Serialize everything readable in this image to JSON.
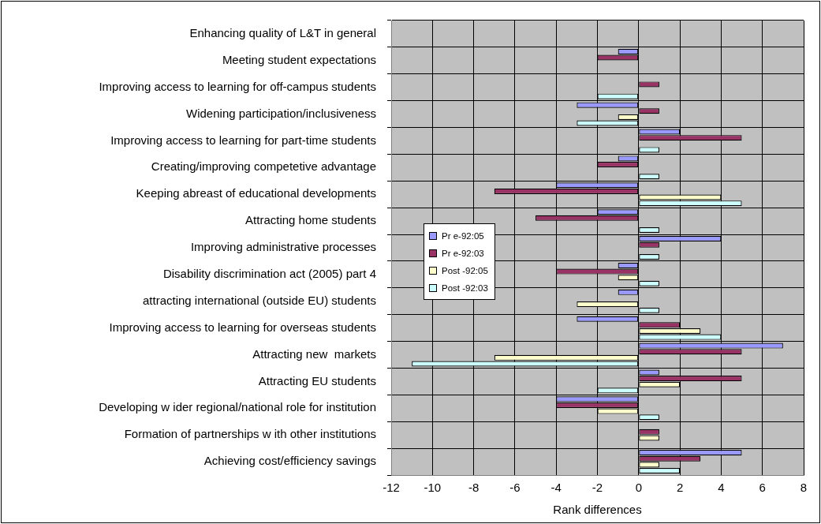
{
  "chart_data": {
    "type": "bar",
    "orientation": "horizontal",
    "xlabel": "Rank differences",
    "categories": [
      "Enhancing quality of L&T in general",
      "Meeting student expectations",
      "Improving access to learning for off-campus students",
      "Widening participation/inclusiveness",
      "Improving access to learning for part-time students",
      "Creating/improving competetive advantage",
      "Keeping abreast of educational developments",
      "Attracting home students",
      "Improving administrative processes",
      "Disability discrimination act (2005) part 4",
      "attracting international (outside EU) students",
      "Improving access to learning for overseas students",
      "Attracting new  markets",
      "Attracting EU students",
      "Developing w ider regional/national role for institution",
      "Formation of partnerships w ith other institutions",
      "Achieving cost/efficiency savings"
    ],
    "series": [
      {
        "name": "Pr e-92:05",
        "color": "#9999ff",
        "values": [
          0,
          -1,
          0,
          -3,
          2,
          -1,
          -4,
          -2,
          4,
          -1,
          -1,
          -3,
          7,
          1,
          -4,
          0,
          5
        ]
      },
      {
        "name": "Pr e-92:03",
        "color": "#993366",
        "values": [
          0,
          -2,
          1,
          1,
          5,
          -2,
          -7,
          -5,
          1,
          -4,
          0,
          2,
          5,
          5,
          -4,
          1,
          3
        ]
      },
      {
        "name": "Post -92:05",
        "color": "#ffffcc",
        "values": [
          0,
          0,
          0,
          -1,
          0,
          0,
          4,
          0,
          0,
          -1,
          -3,
          3,
          -7,
          2,
          -2,
          1,
          1
        ]
      },
      {
        "name": "Post -92:03",
        "color": "#ccffff",
        "values": [
          0,
          0,
          -2,
          -3,
          1,
          1,
          5,
          1,
          1,
          1,
          1,
          4,
          -11,
          -2,
          1,
          0,
          2
        ]
      }
    ],
    "xlim": [
      -12,
      8
    ],
    "xticks": [
      -12,
      -10,
      -8,
      -6,
      -4,
      -2,
      0,
      2,
      4,
      6,
      8
    ],
    "grid": true,
    "legend": "left"
  }
}
